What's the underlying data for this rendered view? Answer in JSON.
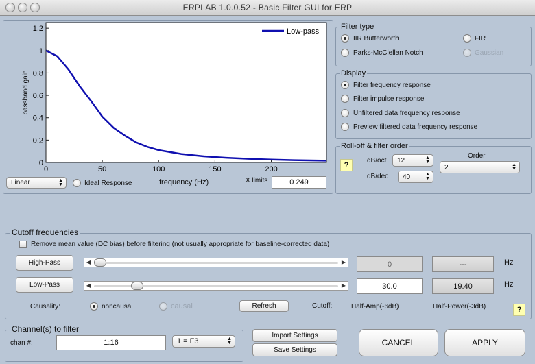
{
  "window": {
    "title": "ERPLAB 1.0.0.52   -   Basic Filter GUI for ERP"
  },
  "plot": {
    "ylabel": "passband gain",
    "xlabel": "frequency (Hz)",
    "legend": "Low-pass",
    "y_ticks": [
      "1.2",
      "1",
      "0.8",
      "0.6",
      "0.4",
      "0.2",
      "0"
    ],
    "x_ticks": [
      "0",
      "50",
      "100",
      "150",
      "200"
    ],
    "scale_select": "Linear",
    "ideal_response_label": "Ideal Response",
    "xlimits_label": "X limits",
    "xlimits_value": "0  249"
  },
  "chart_data": {
    "type": "line",
    "series": [
      {
        "name": "Low-pass",
        "color": "#1010b0"
      }
    ],
    "xlabel": "frequency (Hz)",
    "ylabel": "passband gain",
    "xlim": [
      0,
      249
    ],
    "ylim": [
      0,
      1.25
    ],
    "x": [
      0,
      10,
      20,
      30,
      40,
      50,
      60,
      70,
      80,
      90,
      100,
      120,
      140,
      160,
      180,
      200,
      220,
      249
    ],
    "y": [
      1.0,
      0.95,
      0.83,
      0.68,
      0.55,
      0.41,
      0.31,
      0.24,
      0.18,
      0.14,
      0.11,
      0.076,
      0.055,
      0.042,
      0.033,
      0.026,
      0.021,
      0.016
    ],
    "grid": false,
    "legend_position": "top-right"
  },
  "filter_type": {
    "title": "Filter type",
    "options": [
      {
        "label": "IIR Butterworth",
        "selected": true,
        "enabled": true
      },
      {
        "label": "FIR",
        "selected": false,
        "enabled": true
      },
      {
        "label": "Parks-McClellan Notch",
        "selected": false,
        "enabled": true
      },
      {
        "label": "Gaussian",
        "selected": false,
        "enabled": false
      }
    ]
  },
  "display": {
    "title": "Display",
    "options": [
      {
        "label": "Filter frequency response",
        "selected": true
      },
      {
        "label": "Filter impulse response",
        "selected": false
      },
      {
        "label": "Unfiltered data frequency response",
        "selected": false
      },
      {
        "label": "Preview filtered data frequency response",
        "selected": false
      }
    ]
  },
  "rolloff": {
    "title": "Roll-off & filter order",
    "help": "?",
    "dboct_label": "dB/oct",
    "dboct_value": "12",
    "dbdec_label": "dB/dec",
    "dbdec_value": "40",
    "order_label": "Order",
    "order_value": "2"
  },
  "cutoff": {
    "title": "Cutoff frequencies",
    "dc_bias_label": "Remove mean value (DC bias) before filtering (not usually appropriate for baseline-corrected data)",
    "highpass_label": "High-Pass",
    "highpass_value": "0",
    "highpass_power": "---",
    "highpass_fraction": 0.0,
    "lowpass_label": "Low-Pass",
    "lowpass_value": "30.0",
    "lowpass_power": "19.40",
    "lowpass_fraction": 0.16,
    "hz": "Hz",
    "causality_label": "Causality:",
    "noncausal_label": "noncausal",
    "causal_label": "causal",
    "refresh_label": "Refresh",
    "cutoff_label": "Cutoff:",
    "half_amp_label": "Half-Amp(-6dB)",
    "half_power_label": "Half-Power(-3dB)",
    "help": "?"
  },
  "channels": {
    "title": "Channel(s) to filter",
    "chan_label": "chan #:",
    "chan_value": "1:16",
    "chan_select": "1 = F3"
  },
  "actions": {
    "import_label": "Import Settings",
    "save_label": "Save Settings",
    "cancel_label": "CANCEL",
    "apply_label": "APPLY"
  }
}
